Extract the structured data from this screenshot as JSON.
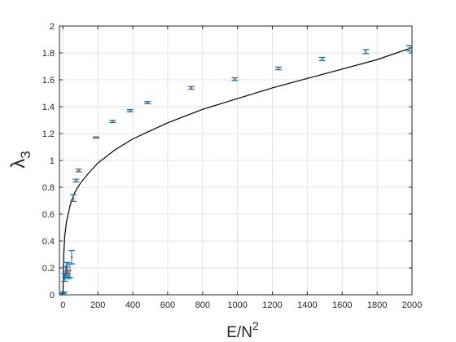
{
  "chart_data": {
    "type": "scatter",
    "xlabel_base": "E/N",
    "xlabel_sup": "2",
    "ylabel_base": "λ",
    "ylabel_sub": "3",
    "xlim": [
      -20,
      2000
    ],
    "ylim": [
      0,
      2
    ],
    "xticks": [
      0,
      200,
      400,
      600,
      800,
      1000,
      1200,
      1400,
      1600,
      1800,
      2000
    ],
    "yticks": [
      0,
      0.2,
      0.4,
      0.6,
      0.8,
      1,
      1.2,
      1.4,
      1.6,
      1.8,
      2
    ],
    "xtick_labels": [
      "0",
      "200",
      "400",
      "600",
      "800",
      "1000",
      "1200",
      "1400",
      "1600",
      "1800",
      "2000"
    ],
    "ytick_labels": [
      "0",
      "0.2",
      "0.4",
      "0.6",
      "0.8",
      "1",
      "1.2",
      "1.4",
      "1.6",
      "1.8",
      "2"
    ],
    "grid": true,
    "colors": {
      "errorbar": "#0072bd",
      "marker": "#d95319",
      "fit_line": "#000000"
    },
    "series": [
      {
        "type": "errorbar",
        "points": [
          {
            "x": 0,
            "y": 0.005,
            "err": 0.005
          },
          {
            "x": 3,
            "y": 0.01,
            "err": 0.01
          },
          {
            "x": 6,
            "y": 0.01,
            "err": 0.01
          },
          {
            "x": 10,
            "y": 0.13,
            "err": 0.03
          },
          {
            "x": 15,
            "y": 0.17,
            "err": 0.04
          },
          {
            "x": 20,
            "y": 0.19,
            "err": 0.05
          },
          {
            "x": 25,
            "y": 0.2,
            "err": 0.04
          },
          {
            "x": 30,
            "y": 0.15,
            "err": 0.03
          },
          {
            "x": 40,
            "y": 0.18,
            "err": 0.05
          },
          {
            "x": 50,
            "y": 0.28,
            "err": 0.05
          },
          {
            "x": 60,
            "y": 0.72,
            "err": 0.025
          },
          {
            "x": 75,
            "y": 0.85,
            "err": 0.01
          },
          {
            "x": 90,
            "y": 0.925,
            "err": 0.01
          },
          {
            "x": 190,
            "y": 1.17,
            "err": 0.005
          },
          {
            "x": 285,
            "y": 1.29,
            "err": 0.008
          },
          {
            "x": 385,
            "y": 1.37,
            "err": 0.008
          },
          {
            "x": 485,
            "y": 1.43,
            "err": 0.008
          },
          {
            "x": 735,
            "y": 1.54,
            "err": 0.01
          },
          {
            "x": 985,
            "y": 1.605,
            "err": 0.01
          },
          {
            "x": 1235,
            "y": 1.685,
            "err": 0.01
          },
          {
            "x": 1485,
            "y": 1.755,
            "err": 0.012
          },
          {
            "x": 1735,
            "y": 1.81,
            "err": 0.015
          },
          {
            "x": 1985,
            "y": 1.835,
            "err": 0.02
          }
        ]
      },
      {
        "type": "line",
        "points": [
          {
            "x": 0,
            "y": 0.0
          },
          {
            "x": 5,
            "y": 0.3
          },
          {
            "x": 10,
            "y": 0.43
          },
          {
            "x": 20,
            "y": 0.54
          },
          {
            "x": 40,
            "y": 0.66
          },
          {
            "x": 60,
            "y": 0.74
          },
          {
            "x": 80,
            "y": 0.79
          },
          {
            "x": 100,
            "y": 0.83
          },
          {
            "x": 150,
            "y": 0.91
          },
          {
            "x": 200,
            "y": 0.98
          },
          {
            "x": 300,
            "y": 1.08
          },
          {
            "x": 400,
            "y": 1.16
          },
          {
            "x": 500,
            "y": 1.22
          },
          {
            "x": 600,
            "y": 1.28
          },
          {
            "x": 800,
            "y": 1.38
          },
          {
            "x": 1000,
            "y": 1.46
          },
          {
            "x": 1200,
            "y": 1.54
          },
          {
            "x": 1400,
            "y": 1.61
          },
          {
            "x": 1600,
            "y": 1.68
          },
          {
            "x": 1800,
            "y": 1.75
          },
          {
            "x": 2000,
            "y": 1.84
          }
        ]
      }
    ]
  }
}
